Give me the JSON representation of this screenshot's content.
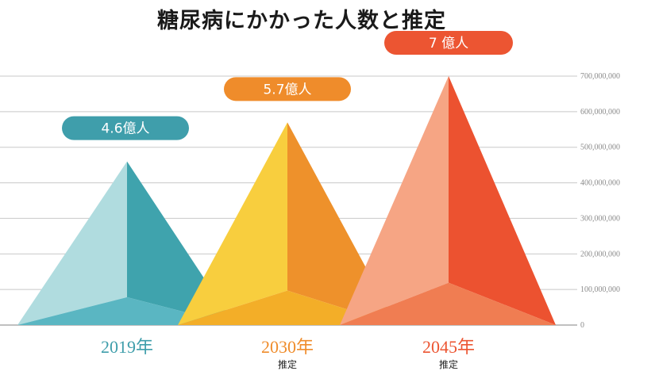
{
  "chart_data": {
    "type": "bar",
    "title": "糖尿病にかかった人数と推定",
    "categories": [
      "2019年",
      "2030年",
      "2045年"
    ],
    "sublabels": [
      "",
      "推定",
      "推定"
    ],
    "values": [
      460000000,
      570000000,
      700000000
    ],
    "data_labels": [
      "4.6億人",
      "5.7億人",
      "7 億人"
    ],
    "ylim": [
      0,
      700000000
    ],
    "yticks": [
      0,
      100000000,
      200000000,
      300000000,
      400000000,
      500000000,
      600000000,
      700000000
    ],
    "ytick_labels": [
      "0",
      "100,000,000",
      "200,000,000",
      "300,000,000",
      "400,000,000",
      "500,000,000",
      "600,000,000",
      "700,000,000"
    ],
    "grid": true,
    "axis_position": "right",
    "colors": [
      {
        "light": "#b0dcdf",
        "dark": "#3fa3ad",
        "base": "#5ab6c2",
        "label": "#3f9eab"
      },
      {
        "light": "#f8ce3e",
        "dark": "#ee912b",
        "base": "#f3ae28",
        "label": "#ef8c2b"
      },
      {
        "light": "#f6a584",
        "dark": "#ec5230",
        "base": "#f07d52",
        "label": "#ec5532"
      }
    ]
  }
}
